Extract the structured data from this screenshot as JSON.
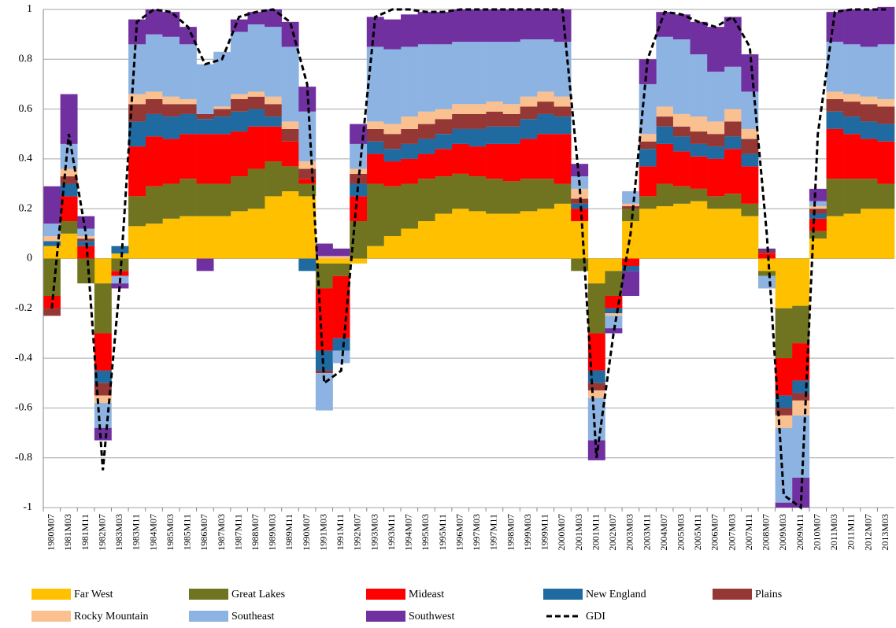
{
  "chart_data": {
    "type": "bar",
    "stacked": true,
    "categories": [
      "1980M07",
      "1981M03",
      "1981M11",
      "1982M07",
      "1983M03",
      "1983M11",
      "1984M07",
      "1985M03",
      "1985M11",
      "1986M07",
      "1987M03",
      "1987M11",
      "1988M07",
      "1989M03",
      "1989M11",
      "1990M07",
      "1991M03",
      "1991M11",
      "1992M07",
      "1993M03",
      "1993M11",
      "1994M07",
      "1995M03",
      "1995M11",
      "1996M07",
      "1997M03",
      "1997M11",
      "1998M07",
      "1999M03",
      "1999M11",
      "2000M07",
      "2001M03",
      "2001M11",
      "2002M07",
      "2003M03",
      "2003M11",
      "2004M07",
      "2005M03",
      "2005M11",
      "2006M07",
      "2007M03",
      "2007M11",
      "2008M07",
      "2009M03",
      "2009M11",
      "2010M07",
      "2011M03",
      "2011M11",
      "2012M07",
      "2013M03"
    ],
    "ylim": [
      -1,
      1
    ],
    "yticks": [
      -1,
      -0.8,
      -0.6,
      -0.4,
      -0.2,
      0,
      0.2,
      0.4,
      0.6,
      0.8,
      1
    ],
    "grid": true,
    "legend": "bottom",
    "series": [
      {
        "name": "Far West",
        "color": "#ffc000",
        "values": [
          0.05,
          0.1,
          0,
          -0.1,
          0.02,
          0.13,
          0.14,
          0.16,
          0.17,
          0.17,
          0.17,
          0.19,
          0.2,
          0.25,
          0.27,
          0.25,
          -0.02,
          -0.02,
          -0.02,
          0.05,
          0.09,
          0.12,
          0.15,
          0.18,
          0.2,
          0.19,
          0.18,
          0.18,
          0.19,
          0.2,
          0.22,
          0.15,
          -0.1,
          -0.05,
          0.15,
          0.2,
          0.21,
          0.22,
          0.23,
          0.2,
          0.2,
          0.17,
          -0.05,
          -0.2,
          -0.19,
          0.08,
          0.17,
          0.18,
          0.2,
          0.2
        ]
      },
      {
        "name": "Great Lakes",
        "color": "#707420",
        "values": [
          -0.15,
          0.05,
          -0.1,
          -0.2,
          -0.05,
          0.12,
          0.15,
          0.14,
          0.15,
          0.13,
          0.13,
          0.14,
          0.16,
          0.14,
          0.1,
          0.05,
          -0.1,
          -0.05,
          0.15,
          0.25,
          0.2,
          0.18,
          0.17,
          0.15,
          0.14,
          0.14,
          0.14,
          0.13,
          0.13,
          0.12,
          0.08,
          -0.05,
          -0.2,
          -0.1,
          0.05,
          0.05,
          0.09,
          0.07,
          0.05,
          0.05,
          0.06,
          0.05,
          -0.02,
          -0.2,
          -0.15,
          0.03,
          0.15,
          0.14,
          0.12,
          0.1
        ]
      },
      {
        "name": "Mideast",
        "color": "#ff0000",
        "values": [
          -0.05,
          0.1,
          0.05,
          -0.15,
          -0.02,
          0.2,
          0.2,
          0.18,
          0.18,
          0.2,
          0.2,
          0.18,
          0.17,
          0.14,
          0.1,
          0.02,
          -0.25,
          -0.25,
          0.1,
          0.12,
          0.1,
          0.1,
          0.1,
          0.11,
          0.12,
          0.12,
          0.14,
          0.15,
          0.16,
          0.18,
          0.2,
          0.05,
          -0.15,
          -0.05,
          -0.03,
          0.12,
          0.16,
          0.14,
          0.13,
          0.15,
          0.18,
          0.15,
          0.02,
          -0.15,
          -0.15,
          0.05,
          0.2,
          0.18,
          0.16,
          0.17
        ]
      },
      {
        "name": "New England",
        "color": "#1f6aa0",
        "values": [
          0.02,
          0.05,
          0.02,
          -0.05,
          0.03,
          0.1,
          0.09,
          0.09,
          0.08,
          0.06,
          0.07,
          0.08,
          0.07,
          0.04,
          0,
          -0.05,
          -0.08,
          -0.05,
          0.05,
          0.05,
          0.05,
          0.06,
          0.06,
          0.06,
          0.06,
          0.07,
          0.07,
          0.07,
          0.08,
          0.08,
          0.07,
          0.02,
          -0.05,
          -0.02,
          -0.02,
          0.07,
          0.07,
          0.06,
          0.05,
          0.05,
          0.05,
          0.05,
          0,
          -0.05,
          -0.05,
          0.02,
          0.07,
          0.07,
          0.07,
          0.07
        ]
      },
      {
        "name": "Plains",
        "color": "#953735",
        "values": [
          -0.03,
          0.03,
          0.01,
          -0.05,
          0,
          0.07,
          0.06,
          0.05,
          0.04,
          0.02,
          0.03,
          0.05,
          0.05,
          0.05,
          0.05,
          0.04,
          -0.01,
          0,
          0.04,
          0.05,
          0.06,
          0.06,
          0.06,
          0.06,
          0.06,
          0.06,
          0.06,
          0.05,
          0.05,
          0.05,
          0.04,
          0.02,
          -0.03,
          0,
          0.01,
          0.03,
          0.04,
          0.04,
          0.05,
          0.05,
          0.06,
          0.06,
          0.01,
          -0.03,
          -0.03,
          0.02,
          0.05,
          0.06,
          0.07,
          0.07
        ]
      },
      {
        "name": "Rocky Mountain",
        "color": "#fac090",
        "values": [
          0.02,
          0.03,
          0.01,
          -0.03,
          0,
          0.04,
          0.03,
          0.03,
          0.02,
          0,
          0.01,
          0.02,
          0.02,
          0.03,
          0.03,
          0.03,
          0.01,
          0.01,
          0.02,
          0.03,
          0.04,
          0.05,
          0.05,
          0.04,
          0.04,
          0.04,
          0.04,
          0.04,
          0.04,
          0.04,
          0.04,
          0.04,
          -0.03,
          -0.01,
          0.01,
          0.03,
          0.04,
          0.05,
          0.06,
          0.05,
          0.05,
          0.04,
          0,
          -0.05,
          -0.06,
          0.01,
          0.03,
          0.03,
          0.03,
          0.03
        ]
      },
      {
        "name": "Southeast",
        "color": "#8db3e2",
        "values": [
          0.05,
          0.1,
          0.03,
          -0.1,
          -0.03,
          0.2,
          0.23,
          0.24,
          0.22,
          0.2,
          0.22,
          0.25,
          0.27,
          0.28,
          0.3,
          0.2,
          -0.15,
          -0.05,
          0.1,
          0.3,
          0.3,
          0.28,
          0.27,
          0.26,
          0.25,
          0.25,
          0.24,
          0.25,
          0.23,
          0.21,
          0.22,
          0.05,
          -0.17,
          -0.05,
          0.05,
          0.2,
          0.28,
          0.3,
          0.25,
          0.2,
          0.17,
          0.15,
          -0.05,
          -0.3,
          -0.25,
          0.02,
          0.2,
          0.2,
          0.2,
          0.22
        ]
      },
      {
        "name": "Southwest",
        "color": "#7030a0",
        "values": [
          0.15,
          0.2,
          0.05,
          -0.05,
          -0.02,
          0.1,
          0.1,
          0.1,
          0.07,
          -0.05,
          0,
          0.05,
          0.05,
          0.07,
          0.1,
          0.1,
          0.05,
          0.03,
          0.08,
          0.12,
          0.12,
          0.13,
          0.13,
          0.13,
          0.13,
          0.13,
          0.13,
          0.13,
          0.12,
          0.12,
          0.13,
          0.05,
          -0.08,
          -0.02,
          -0.1,
          0.1,
          0.1,
          0.1,
          0.13,
          0.18,
          0.2,
          0.15,
          0.01,
          -0.02,
          -0.12,
          0.05,
          0.12,
          0.14,
          0.15,
          0.15
        ]
      },
      {
        "name": "GDI",
        "type": "line",
        "color": "#000000",
        "line_style": "dashed",
        "values": [
          -0.2,
          0.5,
          0.1,
          -0.85,
          -0.1,
          0.95,
          1,
          0.99,
          0.93,
          0.78,
          0.8,
          0.97,
          0.99,
          1,
          0.95,
          0.7,
          -0.5,
          -0.45,
          0.3,
          0.97,
          1,
          1,
          0.99,
          0.99,
          1,
          1,
          1,
          1,
          1,
          1,
          1,
          0.3,
          -0.8,
          -0.3,
          0.1,
          0.8,
          0.99,
          0.98,
          0.95,
          0.93,
          0.97,
          0.85,
          0.1,
          -0.95,
          -1,
          0.5,
          0.99,
          1,
          1,
          1
        ]
      }
    ]
  }
}
